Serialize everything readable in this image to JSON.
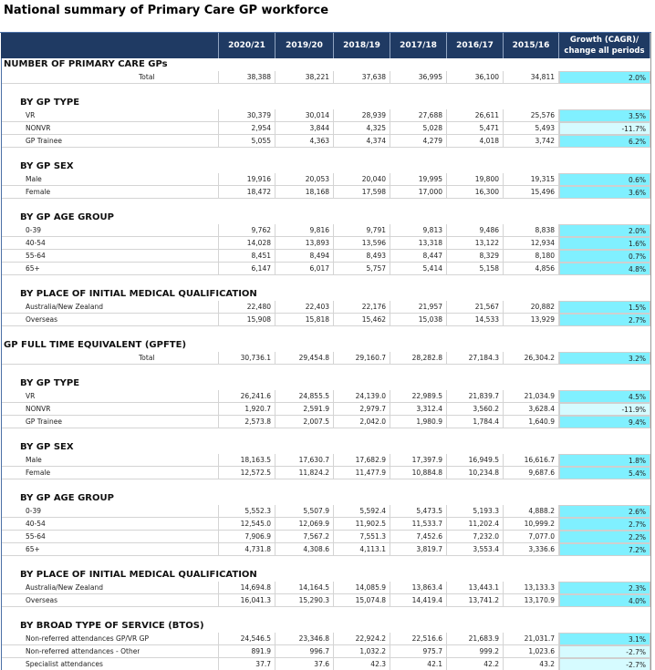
{
  "header": {
    "title": "National summary of Primary Care GP workforce"
  },
  "table": {
    "columns": [
      "2020/21",
      "2019/20",
      "2018/19",
      "2017/18",
      "2016/17",
      "2015/16"
    ],
    "growth_header": "Growth (CAGR)/ change all periods",
    "groups": [
      {
        "title": "NUMBER OF PRIMARY CARE GPs",
        "total": {
          "label": "Total",
          "values": [
            "38,388",
            "38,221",
            "37,638",
            "36,995",
            "36,100",
            "34,811"
          ],
          "growth": "2.0%"
        },
        "subsections": [
          {
            "title": "BY GP TYPE",
            "rows": [
              {
                "label": "VR",
                "values": [
                  "30,379",
                  "30,014",
                  "28,939",
                  "27,688",
                  "26,611",
                  "25,576"
                ],
                "growth": "3.5%"
              },
              {
                "label": "NONVR",
                "values": [
                  "2,954",
                  "3,844",
                  "4,325",
                  "5,028",
                  "5,471",
                  "5,493"
                ],
                "growth": "-11.7%"
              },
              {
                "label": "GP Trainee",
                "values": [
                  "5,055",
                  "4,363",
                  "4,374",
                  "4,279",
                  "4,018",
                  "3,742"
                ],
                "growth": "6.2%"
              }
            ]
          },
          {
            "title": "BY GP SEX",
            "rows": [
              {
                "label": "Male",
                "values": [
                  "19,916",
                  "20,053",
                  "20,040",
                  "19,995",
                  "19,800",
                  "19,315"
                ],
                "growth": "0.6%"
              },
              {
                "label": "Female",
                "values": [
                  "18,472",
                  "18,168",
                  "17,598",
                  "17,000",
                  "16,300",
                  "15,496"
                ],
                "growth": "3.6%"
              }
            ]
          },
          {
            "title": "BY GP AGE GROUP",
            "rows": [
              {
                "label": "0-39",
                "values": [
                  "9,762",
                  "9,816",
                  "9,791",
                  "9,813",
                  "9,486",
                  "8,838"
                ],
                "growth": "2.0%"
              },
              {
                "label": "40-54",
                "values": [
                  "14,028",
                  "13,893",
                  "13,596",
                  "13,318",
                  "13,122",
                  "12,934"
                ],
                "growth": "1.6%"
              },
              {
                "label": "55-64",
                "values": [
                  "8,451",
                  "8,494",
                  "8,493",
                  "8,447",
                  "8,329",
                  "8,180"
                ],
                "growth": "0.7%"
              },
              {
                "label": "65+",
                "values": [
                  "6,147",
                  "6,017",
                  "5,757",
                  "5,414",
                  "5,158",
                  "4,856"
                ],
                "growth": "4.8%"
              }
            ]
          },
          {
            "title": "BY PLACE OF INITIAL MEDICAL QUALIFICATION",
            "rows": [
              {
                "label": "Australia/New Zealand",
                "values": [
                  "22,480",
                  "22,403",
                  "22,176",
                  "21,957",
                  "21,567",
                  "20,882"
                ],
                "growth": "1.5%"
              },
              {
                "label": "Overseas",
                "values": [
                  "15,908",
                  "15,818",
                  "15,462",
                  "15,038",
                  "14,533",
                  "13,929"
                ],
                "growth": "2.7%"
              }
            ]
          }
        ]
      },
      {
        "title": "GP FULL TIME EQUIVALENT (GPFTE)",
        "total": {
          "label": "Total",
          "values": [
            "30,736.1",
            "29,454.8",
            "29,160.7",
            "28,282.8",
            "27,184.3",
            "26,304.2"
          ],
          "growth": "3.2%"
        },
        "subsections": [
          {
            "title": "BY GP TYPE",
            "rows": [
              {
                "label": "VR",
                "values": [
                  "26,241.6",
                  "24,855.5",
                  "24,139.0",
                  "22,989.5",
                  "21,839.7",
                  "21,034.9"
                ],
                "growth": "4.5%"
              },
              {
                "label": "NONVR",
                "values": [
                  "1,920.7",
                  "2,591.9",
                  "2,979.7",
                  "3,312.4",
                  "3,560.2",
                  "3,628.4"
                ],
                "growth": "-11.9%"
              },
              {
                "label": "GP Trainee",
                "values": [
                  "2,573.8",
                  "2,007.5",
                  "2,042.0",
                  "1,980.9",
                  "1,784.4",
                  "1,640.9"
                ],
                "growth": "9.4%"
              }
            ]
          },
          {
            "title": "BY GP SEX",
            "rows": [
              {
                "label": "Male",
                "values": [
                  "18,163.5",
                  "17,630.7",
                  "17,682.9",
                  "17,397.9",
                  "16,949.5",
                  "16,616.7"
                ],
                "growth": "1.8%"
              },
              {
                "label": "Female",
                "values": [
                  "12,572.5",
                  "11,824.2",
                  "11,477.9",
                  "10,884.8",
                  "10,234.8",
                  "9,687.6"
                ],
                "growth": "5.4%"
              }
            ]
          },
          {
            "title": "BY GP AGE GROUP",
            "rows": [
              {
                "label": "0-39",
                "values": [
                  "5,552.3",
                  "5,507.9",
                  "5,592.4",
                  "5,473.5",
                  "5,193.3",
                  "4,888.2"
                ],
                "growth": "2.6%"
              },
              {
                "label": "40-54",
                "values": [
                  "12,545.0",
                  "12,069.9",
                  "11,902.5",
                  "11,533.7",
                  "11,202.4",
                  "10,999.2"
                ],
                "growth": "2.7%"
              },
              {
                "label": "55-64",
                "values": [
                  "7,906.9",
                  "7,567.2",
                  "7,551.3",
                  "7,452.6",
                  "7,232.0",
                  "7,077.0"
                ],
                "growth": "2.2%"
              },
              {
                "label": "65+",
                "values": [
                  "4,731.8",
                  "4,308.6",
                  "4,113.1",
                  "3,819.7",
                  "3,553.4",
                  "3,336.6"
                ],
                "growth": "7.2%"
              }
            ]
          },
          {
            "title": "BY PLACE OF INITIAL MEDICAL QUALIFICATION",
            "rows": [
              {
                "label": "Australia/New Zealand",
                "values": [
                  "14,694.8",
                  "14,164.5",
                  "14,085.9",
                  "13,863.4",
                  "13,443.1",
                  "13,133.3"
                ],
                "growth": "2.3%"
              },
              {
                "label": "Overseas",
                "values": [
                  "16,041.3",
                  "15,290.3",
                  "15,074.8",
                  "14,419.4",
                  "13,741.2",
                  "13,170.9"
                ],
                "growth": "4.0%"
              }
            ]
          },
          {
            "title": "BY BROAD TYPE OF SERVICE (BTOS)",
            "rows": [
              {
                "label": "Non-referred attendances GP/VR GP",
                "values": [
                  "24,546.5",
                  "23,346.8",
                  "22,924.2",
                  "22,516.6",
                  "21,683.9",
                  "21,031.7"
                ],
                "growth": "3.1%"
              },
              {
                "label": "Non-referred attendances - Other",
                "values": [
                  "891.9",
                  "996.7",
                  "1,032.2",
                  "975.7",
                  "999.2",
                  "1,023.6"
                ],
                "growth": "-2.7%"
              },
              {
                "label": "Specialist attendances",
                "values": [
                  "37.7",
                  "37.6",
                  "42.3",
                  "42.1",
                  "42.2",
                  "43.2"
                ],
                "growth": "-2.7%"
              }
            ]
          }
        ]
      }
    ]
  }
}
